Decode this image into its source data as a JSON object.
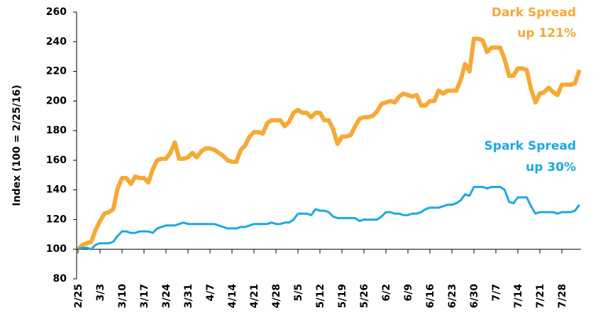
{
  "chart_data": {
    "type": "line",
    "ylabel": "Index (100 = 2/25/16)",
    "categories": [
      "2/25",
      null,
      null,
      null,
      null,
      "3/3",
      null,
      null,
      null,
      null,
      "3/10",
      null,
      null,
      null,
      null,
      "3/17",
      null,
      null,
      null,
      null,
      "3/24",
      null,
      null,
      null,
      null,
      "3/31",
      null,
      null,
      null,
      null,
      "4/7",
      null,
      null,
      null,
      null,
      "4/14",
      null,
      null,
      null,
      null,
      "4/21",
      null,
      null,
      null,
      null,
      "4/28",
      null,
      null,
      null,
      null,
      "5/5",
      null,
      null,
      null,
      null,
      "5/12",
      null,
      null,
      null,
      null,
      "5/19",
      null,
      null,
      null,
      null,
      "5/26",
      null,
      null,
      null,
      null,
      "6/2",
      null,
      null,
      null,
      null,
      "6/9",
      null,
      null,
      null,
      null,
      "6/16",
      null,
      null,
      null,
      null,
      "6/23",
      null,
      null,
      null,
      null,
      "6/30",
      null,
      null,
      null,
      null,
      "7/7",
      null,
      null,
      null,
      null,
      "7/14",
      null,
      null,
      null,
      null,
      "7/21",
      null,
      null,
      null,
      null,
      "7/28",
      null,
      null,
      null,
      null
    ],
    "series": [
      {
        "name": "Dark Spread",
        "color": "#f7a935",
        "annotation": "up 121%",
        "values": [
          100,
          103,
          104,
          105,
          113,
          119,
          124,
          125,
          127,
          141,
          148,
          148,
          144,
          149,
          148,
          148,
          145,
          154,
          160,
          161,
          161,
          165,
          172,
          161,
          161,
          162,
          165,
          162,
          166,
          168,
          168,
          167,
          165,
          163,
          160,
          159,
          159,
          167,
          170,
          176,
          179,
          179,
          178,
          185,
          187,
          187,
          187,
          183,
          186,
          192,
          194,
          192,
          192,
          189,
          192,
          192,
          187,
          187,
          181,
          171,
          176,
          176,
          177,
          183,
          188,
          189,
          189,
          190,
          193,
          198,
          199,
          200,
          199,
          203,
          205,
          204,
          203,
          204,
          197,
          197,
          200,
          200,
          207,
          205,
          207,
          207,
          207,
          214,
          225,
          220,
          242,
          242,
          241,
          233,
          236,
          236,
          236,
          228,
          217,
          217,
          222,
          222,
          221,
          208,
          199,
          205,
          206,
          209,
          206,
          204,
          211,
          211,
          211,
          212,
          221
        ]
      },
      {
        "name": "Spark Spread",
        "color": "#1ca8e1",
        "annotation": "up 30%",
        "values": [
          100,
          101,
          101,
          100,
          103,
          104,
          104,
          104,
          105,
          109,
          112,
          112,
          111,
          111,
          112,
          112,
          112,
          111,
          114,
          115,
          116,
          116,
          116,
          117,
          118,
          117,
          117,
          117,
          117,
          117,
          117,
          117,
          116,
          115,
          114,
          114,
          114,
          115,
          115,
          116,
          117,
          117,
          117,
          117,
          118,
          117,
          117,
          118,
          118,
          120,
          124,
          124,
          124,
          123,
          127,
          126,
          126,
          125,
          122,
          121,
          121,
          121,
          121,
          121,
          119,
          120,
          120,
          120,
          120,
          122,
          125,
          125,
          124,
          124,
          123,
          123,
          124,
          124,
          125,
          127,
          128,
          128,
          128,
          129,
          130,
          130,
          131,
          133,
          137,
          136,
          142,
          142,
          142,
          141,
          142,
          142,
          142,
          140,
          132,
          131,
          135,
          135,
          135,
          129,
          124,
          125,
          125,
          125,
          125,
          124,
          125,
          125,
          125,
          126,
          130
        ]
      }
    ],
    "ylim": [
      80,
      260
    ],
    "yticks": [
      80,
      100,
      120,
      140,
      160,
      180,
      200,
      220,
      240,
      260
    ],
    "x_axis_crosses": 100,
    "grid": false
  }
}
